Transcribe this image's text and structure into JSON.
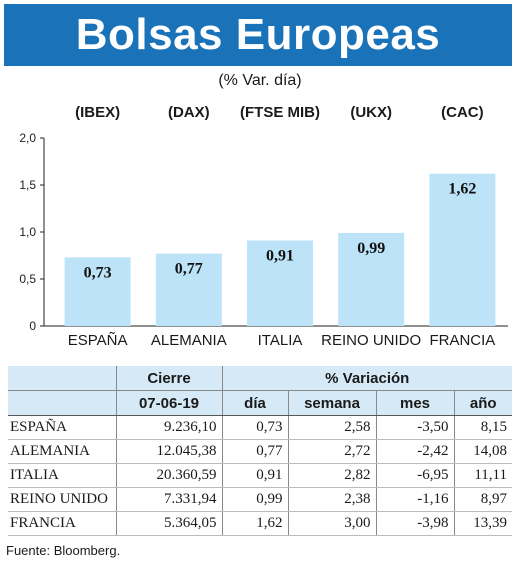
{
  "title": "Bolsas Europeas",
  "subtitle": "(% Var. día)",
  "indices": [
    "(IBEX)",
    "(DAX)",
    "(FTSE MIB)",
    "(UKX)",
    "(CAC)"
  ],
  "chart_data": {
    "type": "bar",
    "categories": [
      "ESPAÑA",
      "ALEMANIA",
      "ITALIA",
      "REINO UNIDO",
      "FRANCIA"
    ],
    "values": [
      0.73,
      0.77,
      0.91,
      0.99,
      1.62
    ],
    "value_labels": [
      "0,73",
      "0,77",
      "0,91",
      "0,99",
      "1,62"
    ],
    "yticks": [
      0,
      0.5,
      1.0,
      1.5,
      2.0
    ],
    "ytick_labels": [
      "0",
      "0,5",
      "1,0",
      "1,5",
      "2,0"
    ],
    "ylim": [
      0,
      2.0
    ],
    "bar_color": "#bde3f8",
    "grid": false
  },
  "table": {
    "group_cierre": "Cierre",
    "group_variacion": "% Variación",
    "date": "07-06-19",
    "cols": [
      "día",
      "semana",
      "mes",
      "año"
    ],
    "rows": [
      {
        "name": "ESPAÑA",
        "cierre": "9.236,10",
        "dia": "0,73",
        "semana": "2,58",
        "mes": "-3,50",
        "ano": "8,15"
      },
      {
        "name": "ALEMANIA",
        "cierre": "12.045,38",
        "dia": "0,77",
        "semana": "2,72",
        "mes": "-2,42",
        "ano": "14,08"
      },
      {
        "name": "ITALIA",
        "cierre": "20.360,59",
        "dia": "0,91",
        "semana": "2,82",
        "mes": "-6,95",
        "ano": "11,11"
      },
      {
        "name": "REINO UNIDO",
        "cierre": "7.331,94",
        "dia": "0,99",
        "semana": "2,38",
        "mes": "-1,16",
        "ano": "8,97"
      },
      {
        "name": "FRANCIA",
        "cierre": "5.364,05",
        "dia": "1,62",
        "semana": "3,00",
        "mes": "-3,98",
        "ano": "13,39"
      }
    ]
  },
  "source": "Fuente: Bloomberg.",
  "colors": {
    "header": "#1a73b8",
    "table_header": "#d5eaf6"
  }
}
